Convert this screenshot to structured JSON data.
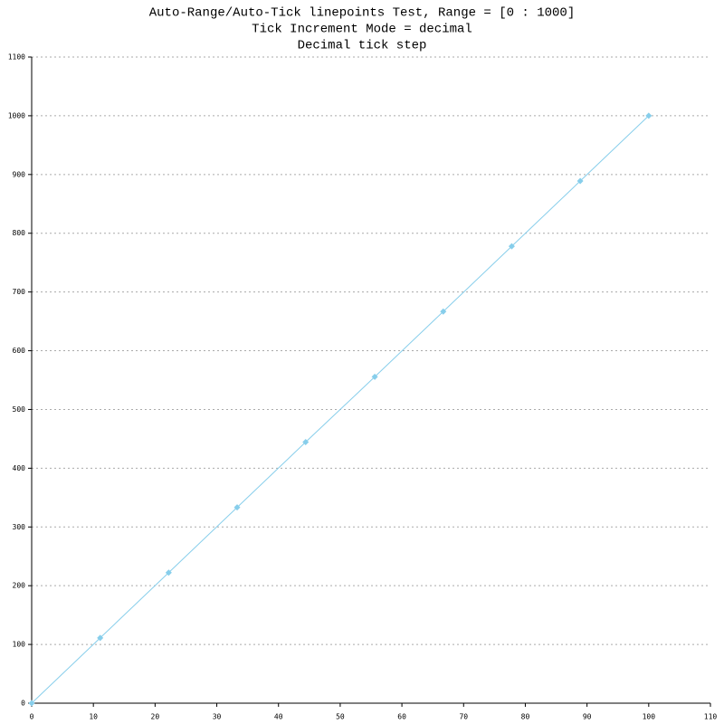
{
  "chart_data": {
    "type": "line",
    "title": [
      "Auto-Range/Auto-Tick linepoints Test, Range = [0 : 1000]",
      "Tick Increment Mode = decimal",
      "Decimal tick step"
    ],
    "x": [
      0,
      11.1,
      22.2,
      33.3,
      44.4,
      55.6,
      66.7,
      77.8,
      88.9,
      100
    ],
    "series": [
      {
        "color": "#87ceeb",
        "values": [
          0,
          111.1,
          222.2,
          333.3,
          444.4,
          555.6,
          666.7,
          777.8,
          888.9,
          1000
        ]
      }
    ],
    "xlim": [
      0,
      110
    ],
    "xticks": [
      0,
      10,
      20,
      30,
      40,
      50,
      60,
      70,
      80,
      90,
      100,
      110
    ],
    "ylim": [
      0,
      1100
    ],
    "yticks": [
      0,
      100,
      200,
      300,
      400,
      500,
      600,
      700,
      800,
      900,
      1000,
      1100
    ],
    "grid": true,
    "markers": "diamond"
  }
}
